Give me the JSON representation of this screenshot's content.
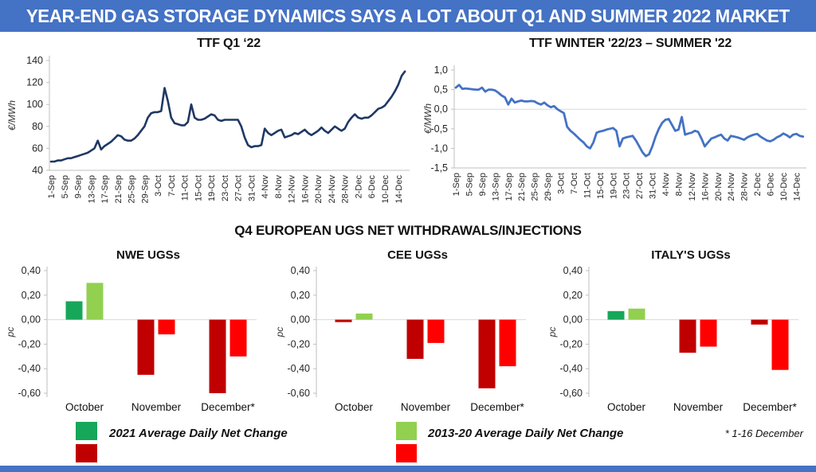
{
  "header": {
    "title": "YEAR-END GAS STORAGE DYNAMICS SAYS A LOT ABOUT Q1 AND SUMMER 2022 MARKET"
  },
  "section": {
    "title": "Q4 EUROPEAN UGS NET WITHDRAWALS/INJECTIONS"
  },
  "footnote": "* 1-16 December",
  "colors": {
    "header_bg": "#4472C4",
    "header_text": "#FFFFFF",
    "line_q1": "#1F3864",
    "line_spread": "#4472C4",
    "green_2021": "#17A75A",
    "red_2021": "#C00000",
    "green_2013_20": "#92D050",
    "red_2013_20": "#FF0000",
    "axis": "#BFBFBF",
    "gridline": "#D9D9D9",
    "tick_text": "#262626"
  },
  "legend": {
    "series_2021": {
      "label": "2021 Average Daily Net Change",
      "positive_color": "#17A75A",
      "negative_color": "#C00000"
    },
    "series_2013_20": {
      "label": "2013-20 Average Daily Net Change",
      "positive_color": "#92D050",
      "negative_color": "#FF0000"
    }
  },
  "chart_data": [
    {
      "id": "ttf_q1_22",
      "type": "line",
      "title": "TTF Q1 ‘22",
      "ylabel": "€/MWh",
      "ylim": [
        40,
        140
      ],
      "yticks": [
        "140",
        "120",
        "100",
        "80",
        "60",
        "40"
      ],
      "ytick_values": [
        140,
        120,
        100,
        80,
        60,
        40
      ],
      "xticks": [
        "1-Sep",
        "5-Sep",
        "9-Sep",
        "13-Sep",
        "17-Sep",
        "21-Sep",
        "25-Sep",
        "29-Sep",
        "3-Oct",
        "7-Oct",
        "11-Oct",
        "15-Oct",
        "19-Oct",
        "23-Oct",
        "27-Oct",
        "31-Oct",
        "4-Nov",
        "8-Nov",
        "12-Nov",
        "16-Nov",
        "20-Nov",
        "24-Nov",
        "28-Nov",
        "2-Dec",
        "6-Dec",
        "10-Dec",
        "14-Dec"
      ],
      "x_range": "daily, 1-Sep to 16-Dec 2021",
      "grid": false,
      "zero_line": false,
      "values": [
        48,
        48,
        49,
        49,
        50,
        51,
        51,
        52,
        53,
        54,
        55,
        56,
        58,
        60,
        67,
        59,
        62,
        64,
        66,
        69,
        72,
        71,
        68,
        67,
        67,
        69,
        72,
        76,
        80,
        88,
        92,
        93,
        93,
        94,
        115,
        103,
        88,
        83,
        82,
        81,
        81,
        84,
        100,
        88,
        86,
        86,
        87,
        89,
        91,
        90,
        86,
        85,
        86,
        86,
        86,
        86,
        86,
        80,
        70,
        63,
        61,
        62,
        62,
        63,
        78,
        74,
        72,
        74,
        76,
        77,
        70,
        71,
        72,
        74,
        73,
        75,
        77,
        74,
        72,
        74,
        76,
        79,
        76,
        74,
        77,
        80,
        78,
        76,
        78,
        84,
        88,
        91,
        88,
        87,
        88,
        88,
        90,
        93,
        96,
        97,
        99,
        103,
        107,
        112,
        118,
        126,
        130
      ]
    },
    {
      "id": "ttf_winter_2223_summer_22",
      "type": "line",
      "title": "TTF WINTER '22/23 – SUMMER '22",
      "ylabel": "€/MWh",
      "ylim": [
        -1.5,
        1.0
      ],
      "yticks": [
        "1,0",
        "0,5",
        "0,0",
        "-0,5",
        "-1,0",
        "-1,5"
      ],
      "ytick_values": [
        1.0,
        0.5,
        0.0,
        -0.5,
        -1.0,
        -1.5
      ],
      "xticks": [
        "1-Sep",
        "5-Sep",
        "9-Sep",
        "13-Sep",
        "17-Sep",
        "21-Sep",
        "25-Sep",
        "29-Sep",
        "3-Oct",
        "7-Oct",
        "11-Oct",
        "15-Oct",
        "19-Oct",
        "23-Oct",
        "27-Oct",
        "31-Oct",
        "4-Nov",
        "8-Nov",
        "12-Nov",
        "16-Nov",
        "20-Nov",
        "24-Nov",
        "28-Nov",
        "2-Dec",
        "6-Dec",
        "10-Dec",
        "14-Dec"
      ],
      "x_range": "daily, 1-Sep to 16-Dec 2021",
      "grid": false,
      "zero_line": true,
      "values": [
        0.55,
        0.62,
        0.52,
        0.53,
        0.52,
        0.51,
        0.5,
        0.5,
        0.55,
        0.45,
        0.5,
        0.5,
        0.48,
        0.42,
        0.35,
        0.3,
        0.12,
        0.27,
        0.17,
        0.2,
        0.22,
        0.2,
        0.2,
        0.21,
        0.2,
        0.15,
        0.12,
        0.17,
        0.1,
        0.05,
        0.08,
        0.0,
        -0.05,
        -0.1,
        -0.45,
        -0.55,
        -0.62,
        -0.7,
        -0.78,
        -0.85,
        -0.95,
        -1.0,
        -0.85,
        -0.6,
        -0.57,
        -0.55,
        -0.52,
        -0.5,
        -0.48,
        -0.55,
        -0.95,
        -0.75,
        -0.72,
        -0.7,
        -0.68,
        -0.8,
        -0.95,
        -1.1,
        -1.2,
        -1.15,
        -0.95,
        -0.7,
        -0.5,
        -0.35,
        -0.27,
        -0.25,
        -0.4,
        -0.55,
        -0.52,
        -0.2,
        -0.65,
        -0.62,
        -0.6,
        -0.55,
        -0.58,
        -0.75,
        -0.95,
        -0.85,
        -0.75,
        -0.72,
        -0.68,
        -0.65,
        -0.75,
        -0.8,
        -0.68,
        -0.7,
        -0.72,
        -0.75,
        -0.78,
        -0.72,
        -0.68,
        -0.65,
        -0.63,
        -0.7,
        -0.75,
        -0.8,
        -0.82,
        -0.78,
        -0.72,
        -0.68,
        -0.62,
        -0.66,
        -0.72,
        -0.65,
        -0.63,
        -0.68,
        -0.7
      ]
    },
    {
      "id": "nwe_ugs",
      "type": "bar",
      "title": "NWE UGSs",
      "ylabel": "pc",
      "ylim": [
        -0.6,
        0.4
      ],
      "yticks": [
        "0,40",
        "0,20",
        "0,00",
        "-0,20",
        "-0,40",
        "-0,60"
      ],
      "ytick_values": [
        0.4,
        0.2,
        0.0,
        -0.2,
        -0.4,
        -0.6
      ],
      "categories": [
        "October",
        "November",
        "December*"
      ],
      "series": [
        {
          "name": "2021 Average Daily Net Change",
          "values": [
            0.15,
            -0.45,
            -0.6
          ]
        },
        {
          "name": "2013-20 Average Daily Net Change",
          "values": [
            0.3,
            -0.12,
            -0.3
          ]
        }
      ]
    },
    {
      "id": "cee_ugs",
      "type": "bar",
      "title": "CEE UGSs",
      "ylabel": "pc",
      "ylim": [
        -0.6,
        0.4
      ],
      "yticks": [
        "0,40",
        "0,20",
        "0,00",
        "-0,20",
        "-0,40",
        "-0,60"
      ],
      "ytick_values": [
        0.4,
        0.2,
        0.0,
        -0.2,
        -0.4,
        -0.6
      ],
      "categories": [
        "October",
        "November",
        "December*"
      ],
      "series": [
        {
          "name": "2021 Average Daily Net Change",
          "values": [
            -0.02,
            -0.32,
            -0.56
          ]
        },
        {
          "name": "2013-20 Average Daily Net Change",
          "values": [
            0.05,
            -0.19,
            -0.38
          ]
        }
      ]
    },
    {
      "id": "italy_ugs",
      "type": "bar",
      "title": "ITALY'S UGSs",
      "ylabel": "pc",
      "ylim": [
        -0.6,
        0.4
      ],
      "yticks": [
        "0,40",
        "0,20",
        "0,00",
        "-0,20",
        "-0,40",
        "-0,60"
      ],
      "ytick_values": [
        0.4,
        0.2,
        0.0,
        -0.2,
        -0.4,
        -0.6
      ],
      "categories": [
        "October",
        "November",
        "December*"
      ],
      "series": [
        {
          "name": "2021 Average Daily Net Change",
          "values": [
            0.07,
            -0.27,
            -0.04
          ]
        },
        {
          "name": "2013-20 Average Daily Net Change",
          "values": [
            0.09,
            -0.22,
            -0.41
          ]
        }
      ]
    }
  ]
}
